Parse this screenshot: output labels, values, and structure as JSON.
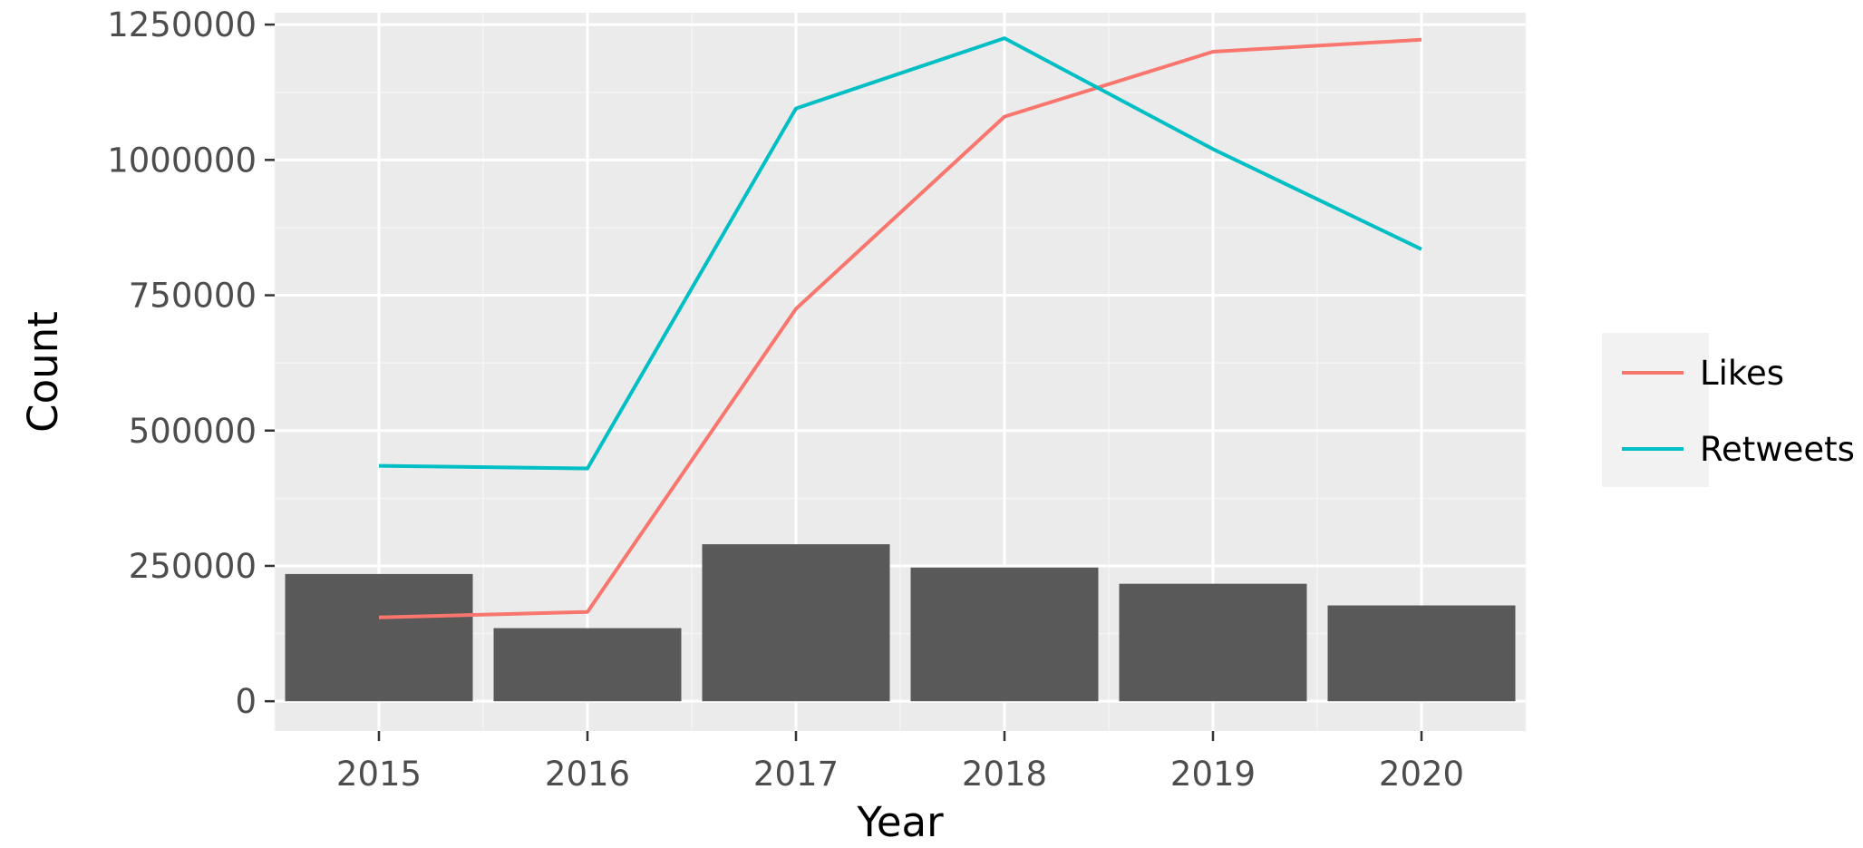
{
  "chart_data": {
    "type": "bar",
    "title": "",
    "xlabel": "Year",
    "ylabel": "Count",
    "categories": [
      "2015",
      "2016",
      "2017",
      "2018",
      "2019",
      "2020"
    ],
    "bars": {
      "values": [
        235000,
        135000,
        290000,
        247000,
        217000,
        177000
      ],
      "color": "#595959"
    },
    "series": [
      {
        "name": "Likes",
        "type": "line",
        "color": "#F8766D",
        "values": [
          155000,
          165000,
          725000,
          1080000,
          1200000,
          1222000
        ]
      },
      {
        "name": "Retweets",
        "type": "line",
        "color": "#00BFC4",
        "values": [
          435000,
          430000,
          1095000,
          1225000,
          1020000,
          835000
        ]
      }
    ],
    "ylim": [
      -55000,
      1272000
    ],
    "yticks": [
      0,
      250000,
      500000,
      750000,
      1000000,
      1250000
    ],
    "ytick_labels": [
      "0",
      "250000",
      "500000",
      "750000",
      "1000000",
      "1250000"
    ],
    "grid": true,
    "legend_position": "right",
    "panel_background": "#EBEBEB"
  }
}
